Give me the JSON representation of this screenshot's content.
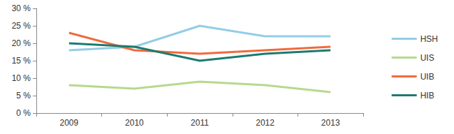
{
  "chart_data": {
    "type": "line",
    "categories": [
      "2009",
      "2010",
      "2011",
      "2012",
      "2013"
    ],
    "series": [
      {
        "name": "HSH",
        "color": "#93cde6",
        "values": [
          18,
          19,
          25,
          22,
          22
        ]
      },
      {
        "name": "UIS",
        "color": "#b6d98c",
        "values": [
          8,
          7,
          9,
          8,
          6
        ]
      },
      {
        "name": "UIB",
        "color": "#f06a3c",
        "values": [
          23,
          18,
          17,
          18,
          19
        ]
      },
      {
        "name": "HIB",
        "color": "#1b7b6f",
        "values": [
          20,
          19,
          15,
          17,
          18
        ]
      }
    ],
    "ylim": [
      0,
      30
    ],
    "yticks": [
      {
        "value": 0,
        "label": "0 %"
      },
      {
        "value": 5,
        "label": "5 %"
      },
      {
        "value": 10,
        "label": "10 %"
      },
      {
        "value": 15,
        "label": "15 %"
      },
      {
        "value": 20,
        "label": "20 %"
      },
      {
        "value": 25,
        "label": "25 %"
      },
      {
        "value": 30,
        "label": "30 %"
      }
    ],
    "grid": false,
    "legend": "right"
  }
}
